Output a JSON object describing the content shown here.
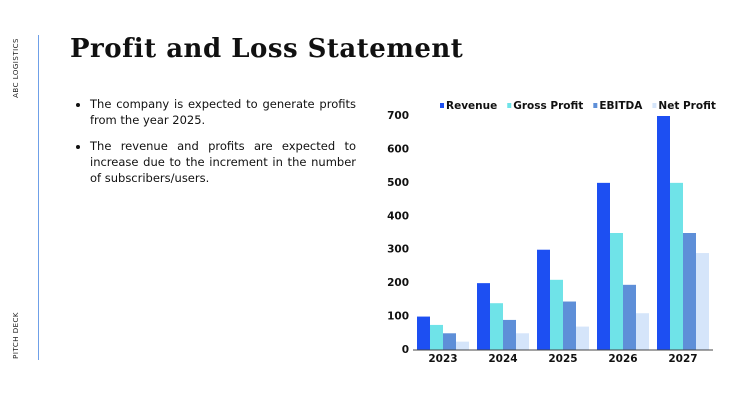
{
  "sidebar": {
    "top": "ABC LOGISTICS",
    "bottom": "PITCH DECK"
  },
  "title": "Profit and Loss Statement",
  "bullets": [
    "The company is expected to generate profits from the year 2025.",
    "The revenue and profits are expected to increase due to the increment in the number of subscribers/users."
  ],
  "chart_data": {
    "type": "bar",
    "categories": [
      "2023",
      "2024",
      "2025",
      "2026",
      "2027"
    ],
    "series": [
      {
        "name": "Revenue",
        "color": "#1d4ff2",
        "values": [
          100,
          200,
          300,
          500,
          700
        ]
      },
      {
        "name": "Gross Profit",
        "color": "#6fe3e8",
        "values": [
          75,
          140,
          210,
          350,
          500
        ]
      },
      {
        "name": "EBITDA",
        "color": "#5e8fd8",
        "values": [
          50,
          90,
          145,
          195,
          350
        ]
      },
      {
        "name": "Net Profit",
        "color": "#d5e5fa",
        "values": [
          25,
          50,
          70,
          110,
          290
        ]
      }
    ],
    "ylim": [
      0,
      700
    ],
    "yticks": [
      0,
      100,
      200,
      300,
      400,
      500,
      600,
      700
    ],
    "grid": false
  }
}
